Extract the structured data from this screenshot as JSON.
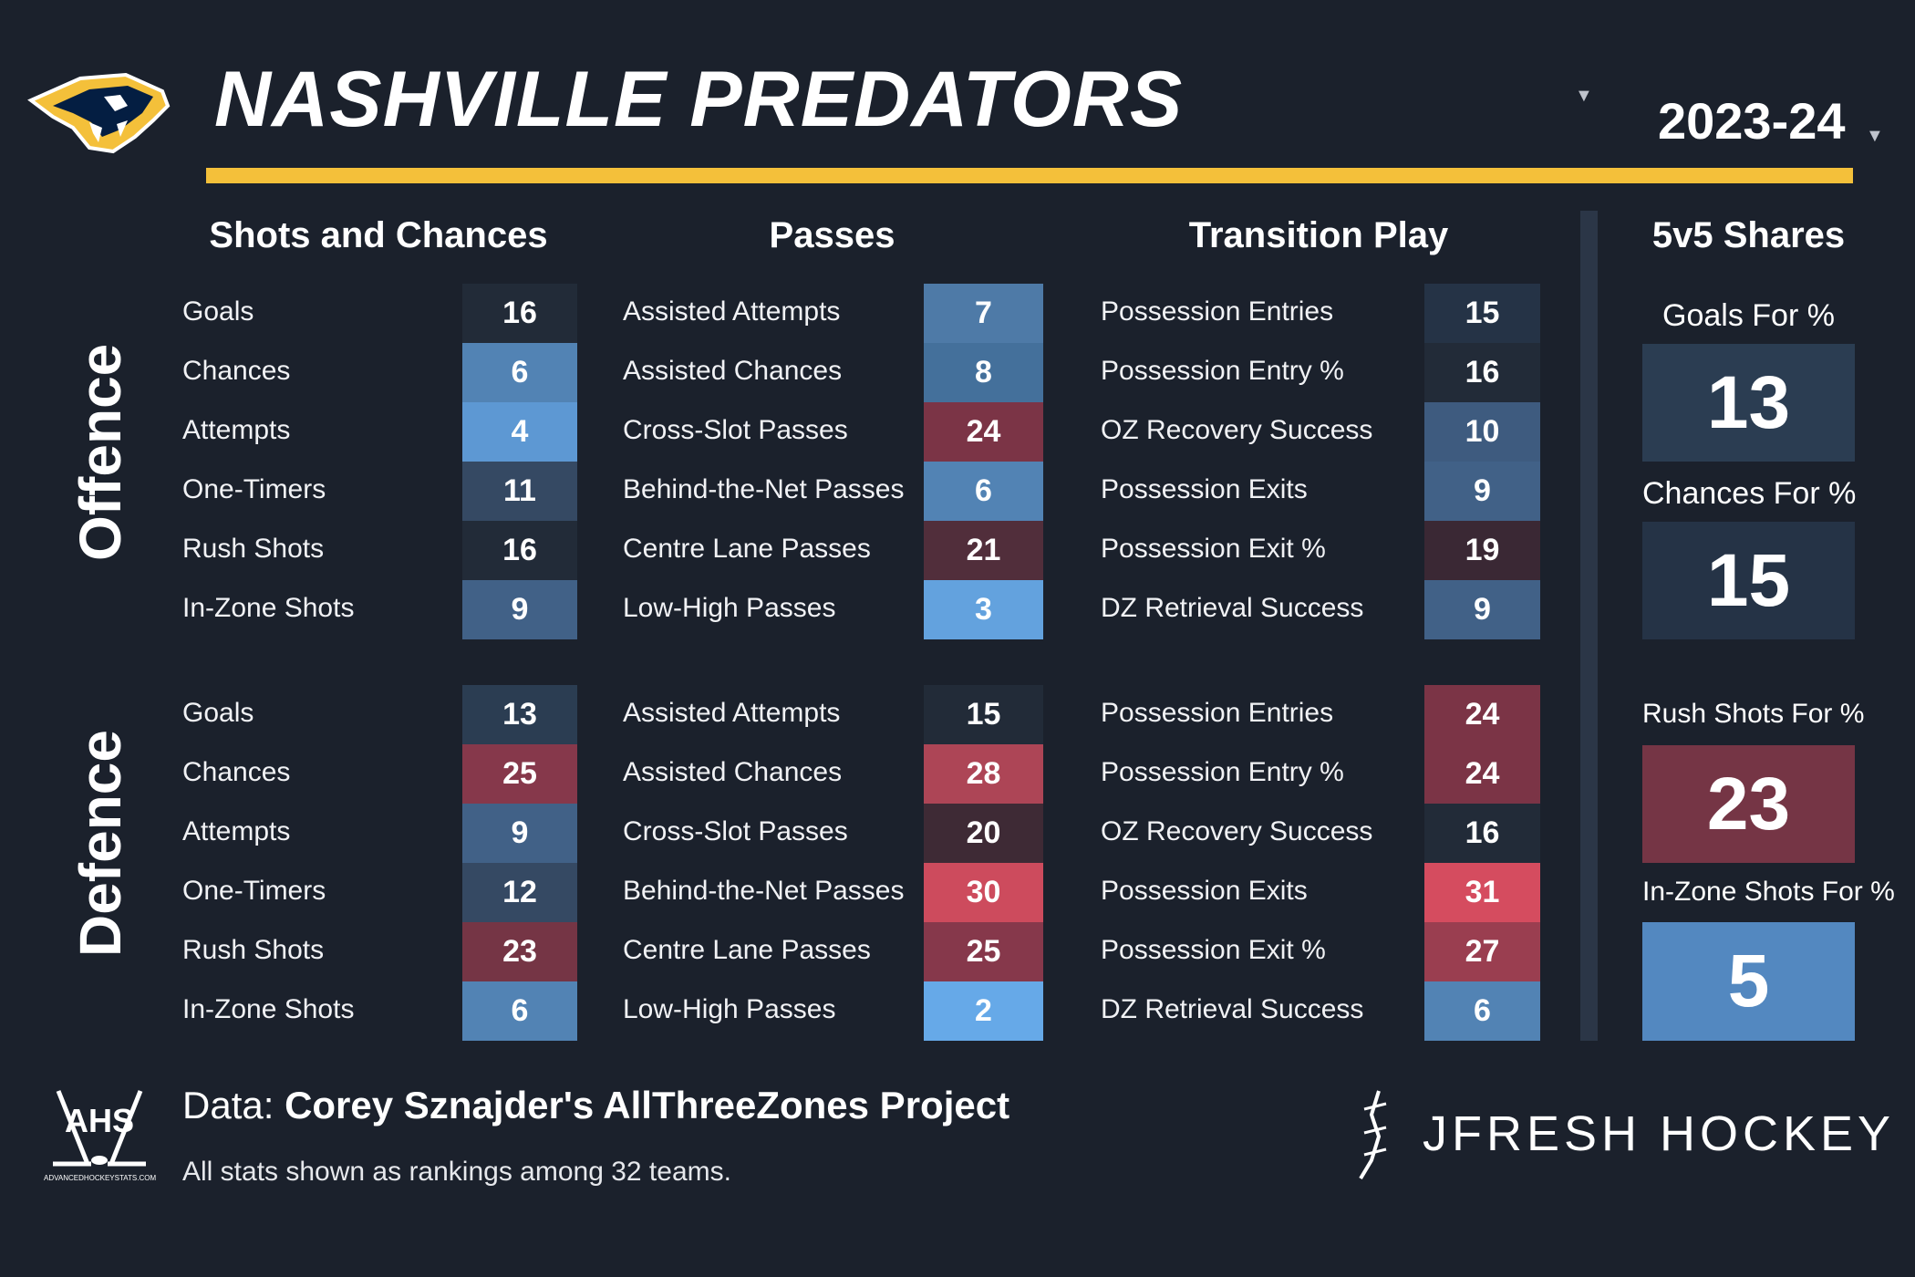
{
  "header": {
    "team": "NASHVILLE PREDATORS",
    "season": "2023-24",
    "colors": {
      "gold_bar": "#f4c03a",
      "background": "#1b212c"
    },
    "icons": [
      "predators-logo-icon",
      "chevron-down-icon"
    ]
  },
  "sections": {
    "offence": "Offence",
    "defence": "Defence"
  },
  "columns": [
    {
      "title": "Shots and Chances",
      "offence": [
        {
          "label": "Goals",
          "value": "16",
          "color": "#222b38"
        },
        {
          "label": "Chances",
          "value": "6",
          "color": "#5283b4"
        },
        {
          "label": "Attempts",
          "value": "4",
          "color": "#5d98d3"
        },
        {
          "label": "One-Timers",
          "value": "11",
          "color": "#354963"
        },
        {
          "label": "Rush Shots",
          "value": "16",
          "color": "#222b38"
        },
        {
          "label": "In-Zone Shots",
          "value": "9",
          "color": "#416187"
        }
      ],
      "defence": [
        {
          "label": "Goals",
          "value": "13",
          "color": "#2b3d52"
        },
        {
          "label": "Chances",
          "value": "25",
          "color": "#86384b"
        },
        {
          "label": "Attempts",
          "value": "9",
          "color": "#416187"
        },
        {
          "label": "One-Timers",
          "value": "12",
          "color": "#354963"
        },
        {
          "label": "Rush Shots",
          "value": "23",
          "color": "#753545"
        },
        {
          "label": "In-Zone Shots",
          "value": "6",
          "color": "#5283b4"
        }
      ]
    },
    {
      "title": "Passes",
      "offence": [
        {
          "label": "Assisted Attempts",
          "value": "7",
          "color": "#4e7aa7"
        },
        {
          "label": "Assisted Chances",
          "value": "8",
          "color": "#44709b"
        },
        {
          "label": "Cross-Slot Passes",
          "value": "24",
          "color": "#7b3446"
        },
        {
          "label": "Behind-the-Net Passes",
          "value": "6",
          "color": "#5283b4"
        },
        {
          "label": "Centre Lane Passes",
          "value": "21",
          "color": "#512e3b"
        },
        {
          "label": "Low-High Passes",
          "value": "3",
          "color": "#63a2de"
        }
      ],
      "defence": [
        {
          "label": "Assisted Attempts",
          "value": "15",
          "color": "#222b38"
        },
        {
          "label": "Assisted Chances",
          "value": "28",
          "color": "#ad4556"
        },
        {
          "label": "Cross-Slot Passes",
          "value": "20",
          "color": "#3e2a35"
        },
        {
          "label": "Behind-the-Net Passes",
          "value": "30",
          "color": "#cd4b5d"
        },
        {
          "label": "Centre Lane Passes",
          "value": "25",
          "color": "#86384b"
        },
        {
          "label": "Low-High Passes",
          "value": "2",
          "color": "#66a9e8"
        }
      ]
    },
    {
      "title": "Transition Play",
      "offence": [
        {
          "label": "Possession Entries",
          "value": "15",
          "color": "#253346"
        },
        {
          "label": "Possession Entry %",
          "value": "16",
          "color": "#222b38"
        },
        {
          "label": "OZ Recovery Success",
          "value": "10",
          "color": "#3e5b7f"
        },
        {
          "label": "Possession Exits",
          "value": "9",
          "color": "#416187"
        },
        {
          "label": "Possession Exit %",
          "value": "19",
          "color": "#3a2834"
        },
        {
          "label": "DZ Retrieval Success",
          "value": "9",
          "color": "#416187"
        }
      ],
      "defence": [
        {
          "label": "Possession Entries",
          "value": "24",
          "color": "#7b3446"
        },
        {
          "label": "Possession Entry %",
          "value": "24",
          "color": "#7b3446"
        },
        {
          "label": "OZ Recovery Success",
          "value": "16",
          "color": "#222b38"
        },
        {
          "label": "Possession Exits",
          "value": "31",
          "color": "#d54c5f"
        },
        {
          "label": "Possession Exit %",
          "value": "27",
          "color": "#9a3e50"
        },
        {
          "label": "DZ Retrieval Success",
          "value": "6",
          "color": "#5283b4"
        }
      ]
    }
  ],
  "shares": {
    "title": "5v5 Shares",
    "items": [
      {
        "label": "Goals For %",
        "value": "13",
        "color": "#2b3d52"
      },
      {
        "label": "Chances For %",
        "value": "15",
        "color": "#253346"
      },
      {
        "label": "Rush Shots For %",
        "value": "23",
        "color": "#753545"
      },
      {
        "label": "In-Zone Shots For %",
        "value": "5",
        "color": "#5388c0"
      }
    ]
  },
  "footer": {
    "data_prefix": "Data:",
    "data_source": "Corey Sznajder's AllThreeZones Project",
    "note": "All stats shown as rankings among 32 teams.",
    "brand": "JFRESH HOCKEY",
    "ahs_logo_text": "AHS",
    "ahs_url": "ADVANCEDHOCKEYSTATS.COM",
    "icons": [
      "ahs-logo-icon",
      "jfresh-logo-icon"
    ]
  }
}
